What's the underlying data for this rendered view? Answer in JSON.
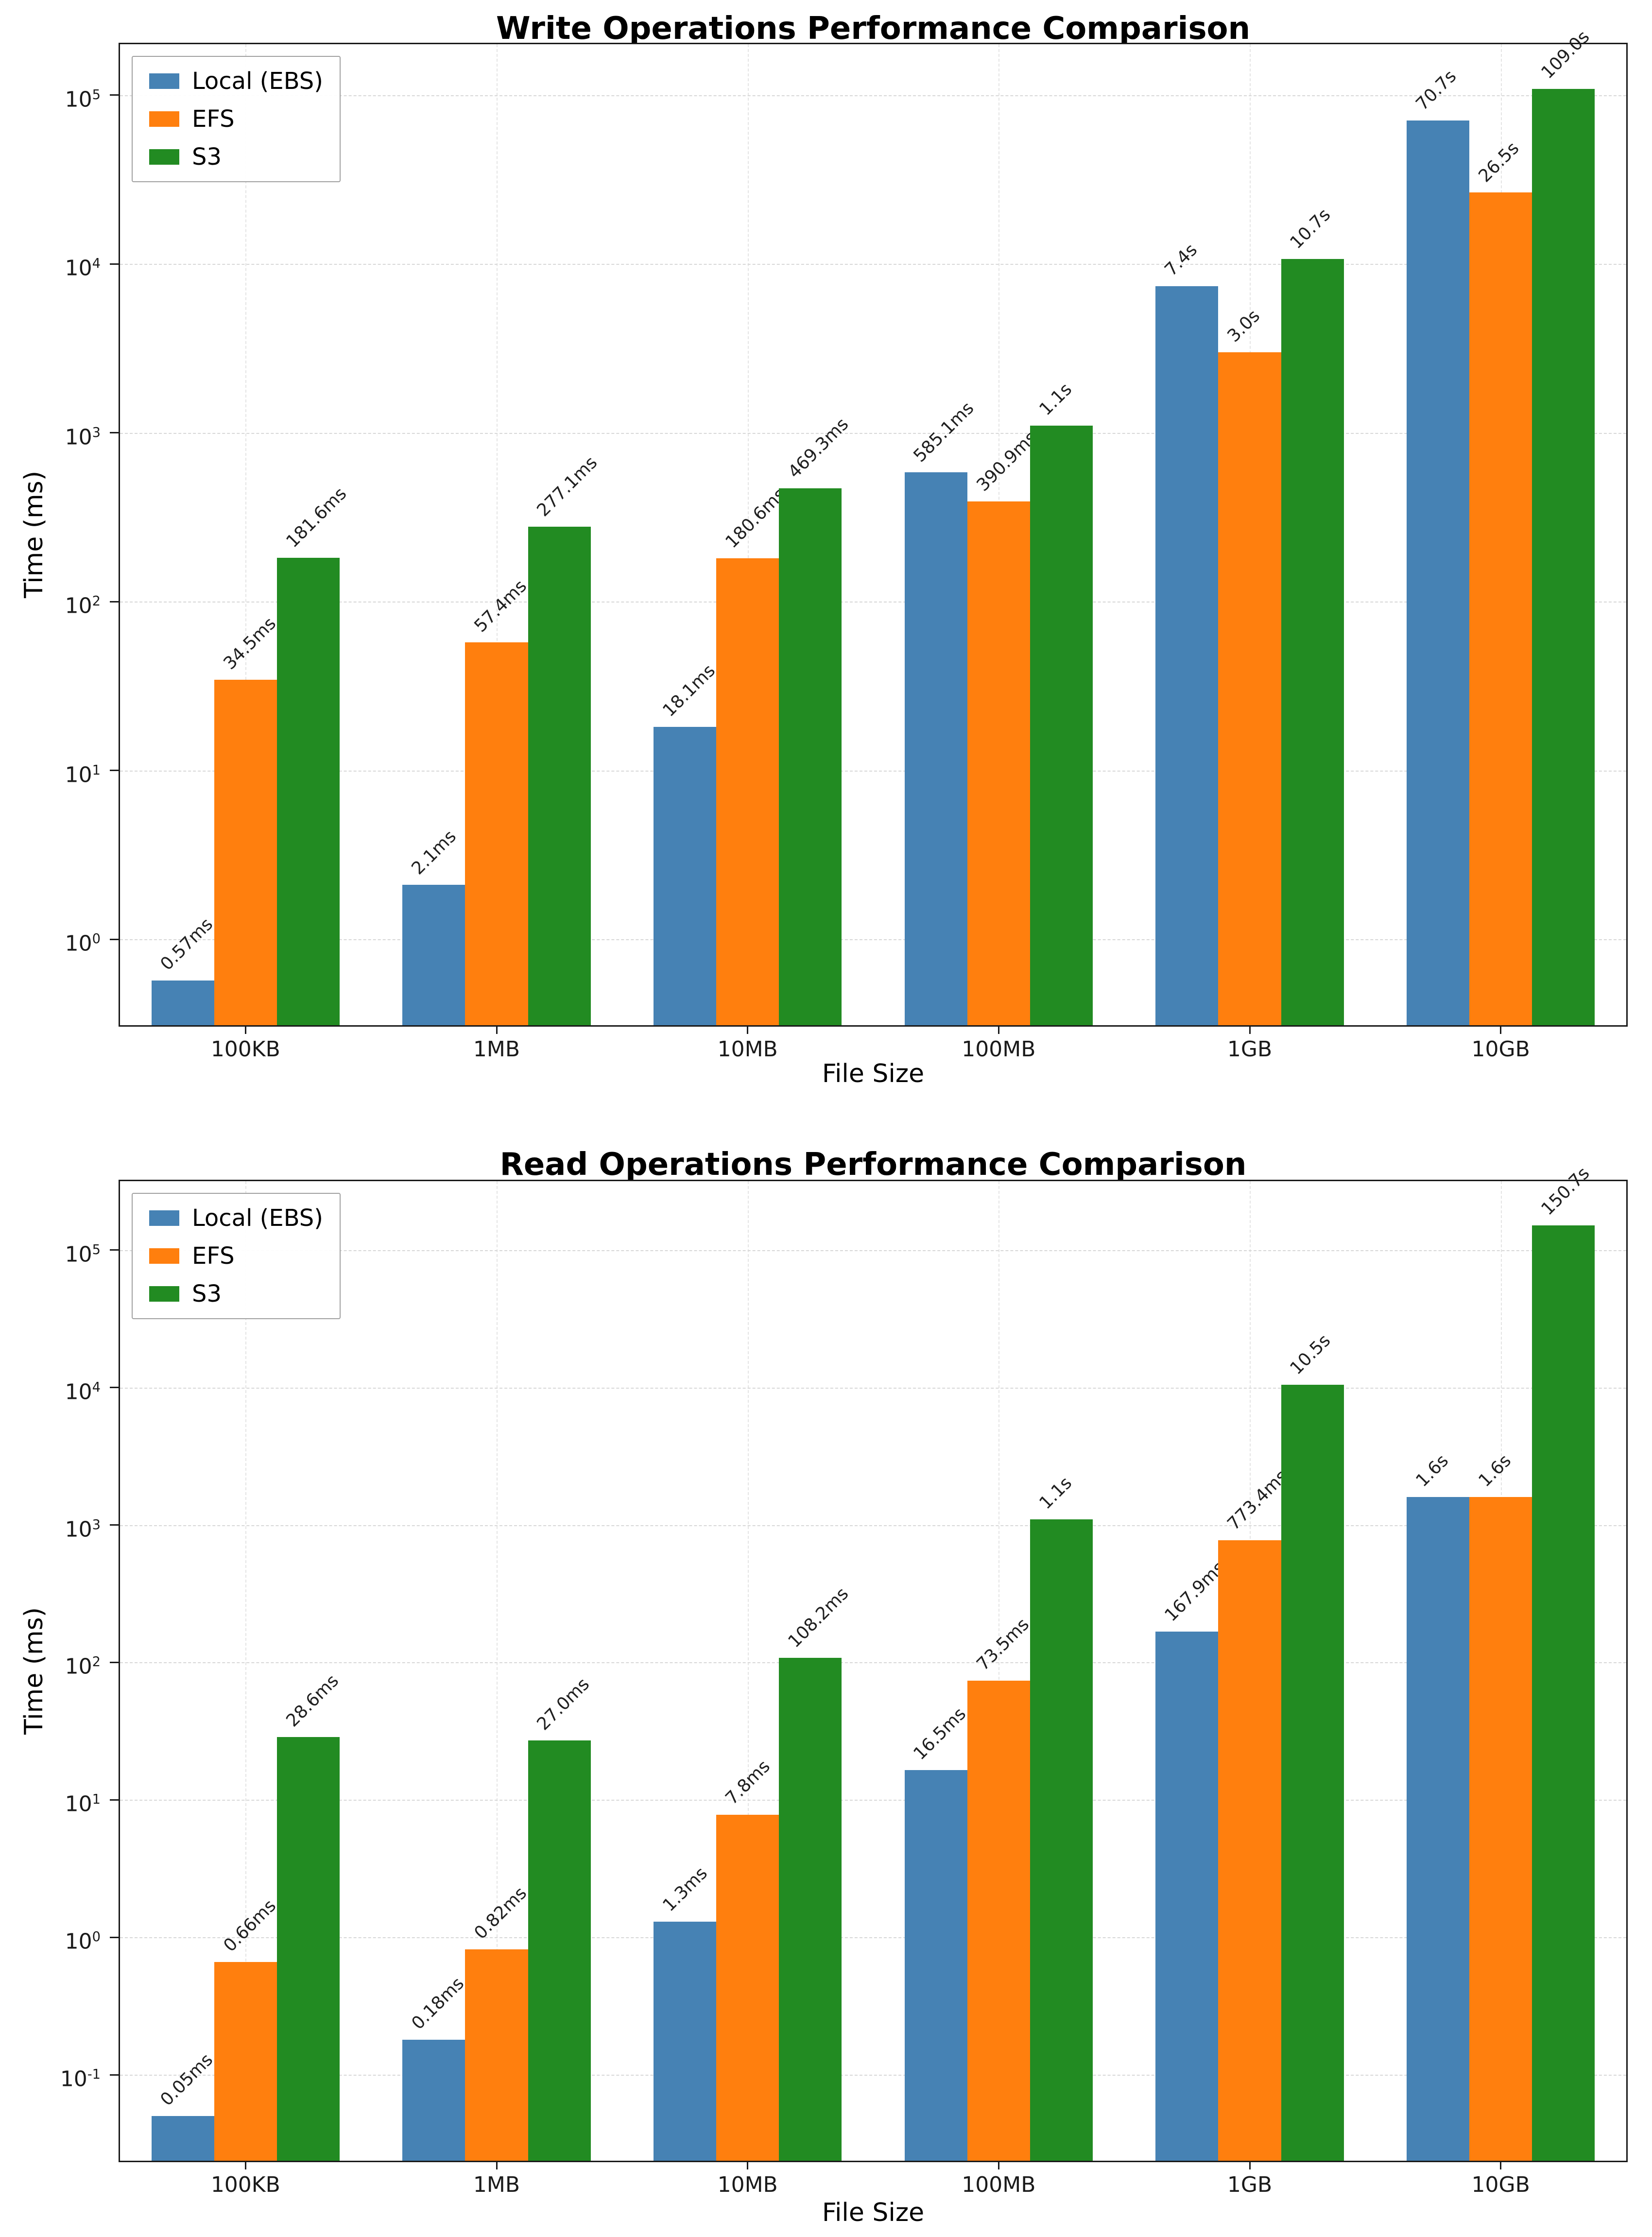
{
  "figure": {
    "background": "#ffffff"
  },
  "chart_data": [
    {
      "type": "bar",
      "title": "Write Operations Performance Comparison",
      "xlabel": "File Size",
      "ylabel": "Time (ms)",
      "yscale": "log",
      "grid": true,
      "legend_position": "upper left",
      "categories": [
        "100KB",
        "1MB",
        "10MB",
        "100MB",
        "1GB",
        "10GB"
      ],
      "ylim_ms": [
        0.31,
        200000
      ],
      "ytick_exponents": [
        0,
        1,
        2,
        3,
        4,
        5
      ],
      "series": [
        {
          "name": "Local (EBS)",
          "color": "#4682B4",
          "values_ms": [
            0.57,
            2.1,
            18.1,
            585.1,
            7400,
            70700
          ],
          "bar_labels": [
            "0.57ms",
            "2.1ms",
            "18.1ms",
            "585.1ms",
            "7.4s",
            "70.7s"
          ]
        },
        {
          "name": "EFS",
          "color": "#FF7F0E",
          "values_ms": [
            34.5,
            57.4,
            180.6,
            390.9,
            3000,
            26500
          ],
          "bar_labels": [
            "34.5ms",
            "57.4ms",
            "180.6ms",
            "390.9ms",
            "3.0s",
            "26.5s"
          ]
        },
        {
          "name": "S3",
          "color": "#228B22",
          "values_ms": [
            181.6,
            277.1,
            469.3,
            1100,
            10700,
            109000
          ],
          "bar_labels": [
            "181.6ms",
            "277.1ms",
            "469.3ms",
            "1.1s",
            "10.7s",
            "109.0s"
          ]
        }
      ]
    },
    {
      "type": "bar",
      "title": "Read Operations Performance Comparison",
      "xlabel": "File Size",
      "ylabel": "Time (ms)",
      "yscale": "log",
      "grid": true,
      "legend_position": "upper left",
      "categories": [
        "100KB",
        "1MB",
        "10MB",
        "100MB",
        "1GB",
        "10GB"
      ],
      "ylim_ms": [
        0.0237,
        317000
      ],
      "ytick_exponents": [
        -1,
        0,
        1,
        2,
        3,
        4,
        5
      ],
      "series": [
        {
          "name": "Local (EBS)",
          "color": "#4682B4",
          "values_ms": [
            0.05,
            0.18,
            1.3,
            16.5,
            167.9,
            1600
          ],
          "bar_labels": [
            "0.05ms",
            "0.18ms",
            "1.3ms",
            "16.5ms",
            "167.9ms",
            "1.6s"
          ]
        },
        {
          "name": "EFS",
          "color": "#FF7F0E",
          "values_ms": [
            0.66,
            0.82,
            7.8,
            73.5,
            773.4,
            1600
          ],
          "bar_labels": [
            "0.66ms",
            "0.82ms",
            "7.8ms",
            "73.5ms",
            "773.4ms",
            "1.6s"
          ]
        },
        {
          "name": "S3",
          "color": "#228B22",
          "values_ms": [
            28.6,
            27.0,
            108.2,
            1100,
            10500,
            150700
          ],
          "bar_labels": [
            "28.6ms",
            "27.0ms",
            "108.2ms",
            "1.1s",
            "10.5s",
            "150.7s"
          ]
        }
      ]
    }
  ]
}
